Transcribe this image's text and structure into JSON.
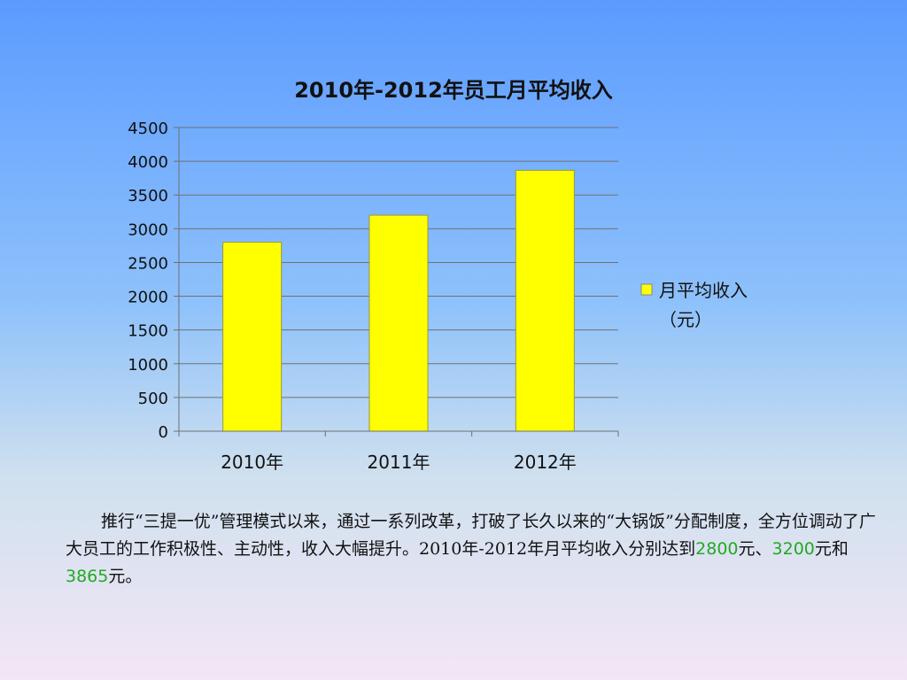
{
  "chart_data": {
    "type": "bar",
    "title": "2010年-2012年员工月平均收入",
    "categories": [
      "2010年",
      "2011年",
      "2012年"
    ],
    "series": [
      {
        "name": "月平均收入（元）",
        "values": [
          2800,
          3200,
          3865
        ],
        "color": "#ffff00"
      }
    ],
    "ylim": [
      0,
      4500
    ],
    "yticks": [
      0,
      500,
      1000,
      1500,
      2000,
      2500,
      3000,
      3500,
      4000,
      4500
    ],
    "grid": true,
    "legend": "right",
    "legend_lines": [
      "月平均收入",
      "（元）"
    ]
  },
  "caption": {
    "text_1": "推行“三提一优”管理模式以来，通过一系列改革，打破了长久以来的“大锅饭”分配制度，全方位调动了广大员工的工作积极性、主动性，收入大幅提升。2010年-2012年月平均收入分别达到",
    "v1": "2800",
    "sep1": "元、",
    "v2": "3200",
    "sep2": "元和",
    "v3": "3865",
    "end": "元。",
    "highlight_color": "#22aa22"
  }
}
